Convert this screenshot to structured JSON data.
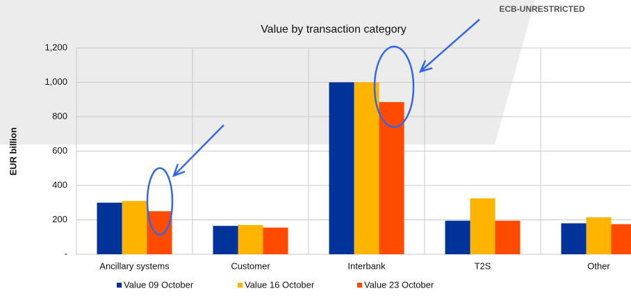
{
  "chart_data": {
    "type": "bar",
    "title": "Value by transaction category",
    "y_label": "EUR billion",
    "annotation": "ECB-UNRESTRICTED",
    "categories": [
      "Ancillary systems",
      "Customer",
      "Interbank",
      "T2S",
      "Other"
    ],
    "series": [
      {
        "name": "Value 09 October",
        "color": "#00339a",
        "values": [
          300,
          165,
          1000,
          195,
          180
        ]
      },
      {
        "name": "Value 16 October",
        "color": "#ffb400",
        "values": [
          310,
          170,
          1000,
          325,
          215
        ]
      },
      {
        "name": "Value 23 October",
        "color": "#ff4b00",
        "values": [
          250,
          155,
          885,
          195,
          175
        ]
      }
    ],
    "ylim": [
      0,
      1200
    ],
    "yticks": [
      {
        "value": 0,
        "label": "-"
      },
      200,
      400,
      600,
      800,
      {
        "value": 1000,
        "label": "1,000"
      },
      {
        "value": 1200,
        "label": "1,200"
      }
    ],
    "grid": true,
    "legend": "bottom"
  }
}
